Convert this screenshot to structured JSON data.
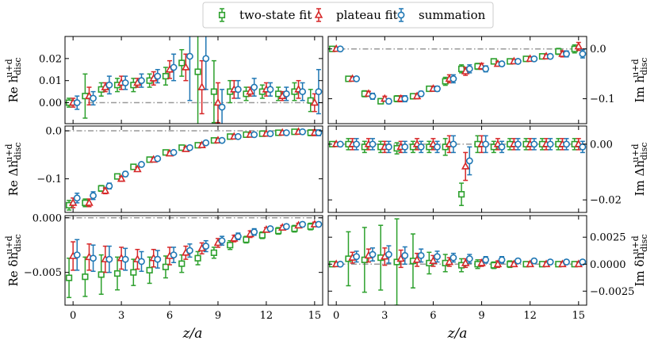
{
  "legend": {
    "entries": [
      {
        "label": "two-state fit",
        "marker": "square",
        "color": "#2ca02c"
      },
      {
        "label": "plateau fit",
        "marker": "triangle",
        "color": "#d62728"
      },
      {
        "label": "summation",
        "marker": "circle",
        "color": "#1f77b4"
      }
    ]
  },
  "xlabel": "z/a",
  "xticks": [
    0,
    3,
    6,
    9,
    12,
    15
  ],
  "xlim": [
    -0.5,
    15.5
  ],
  "refline_color": "#999999",
  "chart_data": [
    {
      "type": "scatter",
      "panel": "Re-h",
      "ylabel": "Re h_disc^{u+d}",
      "ylabel_main": "Re h",
      "ylabel_sub": "disc",
      "ylabel_sup": "u+d",
      "ylim": [
        -0.0095,
        0.03
      ],
      "yticks": [
        0.0,
        0.01,
        0.02
      ],
      "ytick_labels": [
        "0.00",
        "0.01",
        "0.02"
      ],
      "x": [
        0,
        1,
        2,
        3,
        4,
        5,
        6,
        7,
        8,
        9,
        10,
        11,
        12,
        13,
        14,
        15
      ],
      "series": [
        {
          "name": "two-state fit",
          "values": [
            0.0,
            0.003,
            0.006,
            0.008,
            0.008,
            0.01,
            0.012,
            0.018,
            0.014,
            0.005,
            0.005,
            0.004,
            0.005,
            0.004,
            0.005,
            0.001
          ],
          "errors": [
            0.002,
            0.01,
            0.003,
            0.003,
            0.003,
            0.003,
            0.004,
            0.006,
            0.025,
            0.014,
            0.005,
            0.003,
            0.003,
            0.003,
            0.004,
            0.005
          ]
        },
        {
          "name": "plateau fit",
          "values": [
            0.0,
            0.003,
            0.007,
            0.009,
            0.009,
            0.011,
            0.015,
            0.016,
            0.007,
            0.0,
            0.006,
            0.005,
            0.006,
            0.003,
            0.006,
            0.0
          ],
          "errors": [
            0.002,
            0.004,
            0.002,
            0.003,
            0.002,
            0.003,
            0.004,
            0.006,
            0.012,
            0.009,
            0.004,
            0.002,
            0.003,
            0.002,
            0.004,
            0.004
          ]
        },
        {
          "name": "summation",
          "values": [
            0.0,
            0.002,
            0.008,
            0.009,
            0.01,
            0.012,
            0.016,
            0.021,
            0.02,
            -0.002,
            0.006,
            0.007,
            0.006,
            0.004,
            0.005,
            0.005
          ],
          "errors": [
            0.003,
            0.003,
            0.004,
            0.003,
            0.003,
            0.003,
            0.006,
            0.02,
            0.014,
            0.008,
            0.004,
            0.004,
            0.003,
            0.003,
            0.004,
            0.01
          ]
        }
      ],
      "reference_line": 0.0
    },
    {
      "type": "scatter",
      "panel": "Im-h",
      "ylabel": "Im h_disc^{u+d}",
      "ylabel_main": "Im h",
      "ylabel_sub": "disc",
      "ylabel_sup": "u+d",
      "ylim": [
        -0.15,
        0.025
      ],
      "yticks": [
        -0.1,
        0.0
      ],
      "ytick_labels": [
        "−0.1",
        "0.0"
      ],
      "x": [
        0,
        1,
        2,
        3,
        4,
        5,
        6,
        7,
        8,
        9,
        10,
        11,
        12,
        13,
        14,
        15
      ],
      "series": [
        {
          "name": "two-state fit",
          "values": [
            0.0,
            -0.06,
            -0.09,
            -0.105,
            -0.1,
            -0.095,
            -0.08,
            -0.065,
            -0.04,
            -0.035,
            -0.025,
            -0.025,
            -0.02,
            -0.015,
            -0.005,
            0.0
          ],
          "errors": [
            0.002,
            0.004,
            0.006,
            0.005,
            0.006,
            0.005,
            0.005,
            0.008,
            0.008,
            0.006,
            0.004,
            0.004,
            0.004,
            0.004,
            0.006,
            0.008
          ]
        },
        {
          "name": "plateau fit",
          "values": [
            0.0,
            -0.06,
            -0.09,
            -0.1,
            -0.1,
            -0.095,
            -0.08,
            -0.06,
            -0.045,
            -0.035,
            -0.03,
            -0.025,
            -0.02,
            -0.015,
            -0.01,
            0.005
          ],
          "errors": [
            0.002,
            0.004,
            0.005,
            0.005,
            0.006,
            0.005,
            0.005,
            0.008,
            0.008,
            0.006,
            0.004,
            0.004,
            0.004,
            0.004,
            0.006,
            0.008
          ]
        },
        {
          "name": "summation",
          "values": [
            0.0,
            -0.06,
            -0.095,
            -0.105,
            -0.1,
            -0.09,
            -0.08,
            -0.06,
            -0.04,
            -0.04,
            -0.03,
            -0.025,
            -0.02,
            -0.015,
            -0.01,
            -0.01
          ],
          "errors": [
            0.002,
            0.004,
            0.006,
            0.005,
            0.006,
            0.005,
            0.005,
            0.008,
            0.008,
            0.006,
            0.004,
            0.004,
            0.004,
            0.004,
            0.006,
            0.008
          ]
        }
      ],
      "reference_line": 0.0
    },
    {
      "type": "scatter",
      "panel": "Re-Delta-h",
      "ylabel": "Re Δh_disc^{u+d}",
      "ylabel_main": "Re Δh",
      "ylabel_sub": "disc",
      "ylabel_sup": "u+d",
      "ylim": [
        -0.17,
        0.01
      ],
      "yticks": [
        -0.1,
        0.0
      ],
      "ytick_labels": [
        "−0.1",
        "0.0"
      ],
      "x": [
        0,
        1,
        2,
        3,
        4,
        5,
        6,
        7,
        8,
        9,
        10,
        11,
        12,
        13,
        14,
        15
      ],
      "series": [
        {
          "name": "two-state fit",
          "values": [
            -0.155,
            -0.15,
            -0.12,
            -0.095,
            -0.075,
            -0.06,
            -0.045,
            -0.035,
            -0.03,
            -0.02,
            -0.012,
            -0.008,
            -0.006,
            -0.004,
            -0.002,
            -0.004
          ],
          "errors": [
            0.01,
            0.008,
            0.006,
            0.005,
            0.004,
            0.003,
            0.003,
            0.003,
            0.004,
            0.003,
            0.003,
            0.003,
            0.002,
            0.002,
            0.002,
            0.006
          ]
        },
        {
          "name": "plateau fit",
          "values": [
            -0.15,
            -0.15,
            -0.125,
            -0.1,
            -0.08,
            -0.06,
            -0.047,
            -0.038,
            -0.03,
            -0.02,
            -0.012,
            -0.008,
            -0.006,
            -0.004,
            -0.002,
            -0.004
          ],
          "errors": [
            0.01,
            0.008,
            0.006,
            0.005,
            0.004,
            0.003,
            0.003,
            0.003,
            0.004,
            0.003,
            0.003,
            0.003,
            0.002,
            0.002,
            0.002,
            0.006
          ]
        },
        {
          "name": "summation",
          "values": [
            -0.14,
            -0.135,
            -0.115,
            -0.09,
            -0.07,
            -0.058,
            -0.045,
            -0.035,
            -0.025,
            -0.02,
            -0.012,
            -0.008,
            -0.006,
            -0.004,
            -0.002,
            -0.004
          ],
          "errors": [
            0.01,
            0.008,
            0.006,
            0.005,
            0.004,
            0.003,
            0.003,
            0.003,
            0.004,
            0.003,
            0.003,
            0.003,
            0.002,
            0.002,
            0.002,
            0.006
          ]
        }
      ],
      "reference_line": 0.0
    },
    {
      "type": "scatter",
      "panel": "Im-Delta-h",
      "ylabel": "Im Δh_disc^{u+d}",
      "ylabel_main": "Im Δh",
      "ylabel_sub": "disc",
      "ylabel_sup": "u+d",
      "ylim": [
        -0.0245,
        0.0065
      ],
      "yticks": [
        -0.02,
        0.0
      ],
      "ytick_labels": [
        "−0.02",
        "0.00"
      ],
      "x": [
        0,
        1,
        2,
        3,
        4,
        5,
        6,
        7,
        8,
        9,
        10,
        11,
        12,
        13,
        14,
        15
      ],
      "series": [
        {
          "name": "two-state fit",
          "values": [
            0.0,
            0.0,
            -0.001,
            -0.001,
            -0.0015,
            -0.001,
            -0.001,
            -0.001,
            -0.018,
            0.0,
            -0.001,
            0.0,
            0.0,
            0.0,
            0.0,
            0.0
          ],
          "errors": [
            0.0005,
            0.002,
            0.002,
            0.002,
            0.002,
            0.002,
            0.002,
            0.003,
            0.004,
            0.003,
            0.002,
            0.002,
            0.002,
            0.002,
            0.002,
            0.002
          ]
        },
        {
          "name": "plateau fit",
          "values": [
            0.0,
            0.0,
            0.0,
            -0.001,
            -0.001,
            0.0,
            0.0,
            0.0,
            -0.008,
            0.0,
            0.0,
            0.0,
            0.0,
            0.0,
            0.0,
            0.0
          ],
          "errors": [
            0.0005,
            0.002,
            0.002,
            0.002,
            0.002,
            0.002,
            0.002,
            0.003,
            0.005,
            0.003,
            0.002,
            0.002,
            0.002,
            0.002,
            0.002,
            0.002
          ]
        },
        {
          "name": "summation",
          "values": [
            0.0,
            0.0,
            0.0,
            -0.001,
            -0.001,
            -0.001,
            -0.001,
            0.0,
            -0.006,
            0.0,
            -0.001,
            0.0,
            0.0,
            0.0,
            0.0,
            -0.001
          ],
          "errors": [
            0.0005,
            0.002,
            0.002,
            0.002,
            0.002,
            0.002,
            0.002,
            0.003,
            0.005,
            0.003,
            0.002,
            0.002,
            0.002,
            0.002,
            0.002,
            0.002
          ]
        }
      ],
      "reference_line": 0.0
    },
    {
      "type": "scatter",
      "panel": "Re-delta-h",
      "ylabel": "Re δh_disc^{u+d}",
      "ylabel_main": "Re δh",
      "ylabel_sub": "disc",
      "ylabel_sup": "u+d",
      "ylim": [
        -0.008,
        0.0002
      ],
      "yticks": [
        -0.005,
        0.0
      ],
      "ytick_labels": [
        "−0.005",
        "0.000"
      ],
      "x": [
        0,
        1,
        2,
        3,
        4,
        5,
        6,
        7,
        8,
        9,
        10,
        11,
        12,
        13,
        14,
        15
      ],
      "series": [
        {
          "name": "two-state fit",
          "values": [
            -0.0055,
            -0.0054,
            -0.0052,
            -0.0051,
            -0.005,
            -0.0048,
            -0.0045,
            -0.0042,
            -0.0037,
            -0.0032,
            -0.0025,
            -0.002,
            -0.0016,
            -0.0012,
            -0.001,
            -0.0008
          ],
          "errors": [
            0.0018,
            0.0018,
            0.0018,
            0.0015,
            0.0012,
            0.0012,
            0.001,
            0.0008,
            0.0006,
            0.0005,
            0.0004,
            0.0003,
            0.0003,
            0.0003,
            0.0003,
            0.0003
          ]
        },
        {
          "name": "plateau fit",
          "values": [
            -0.0035,
            -0.0036,
            -0.0038,
            -0.0037,
            -0.0038,
            -0.0037,
            -0.0035,
            -0.0032,
            -0.0028,
            -0.0023,
            -0.0019,
            -0.0015,
            -0.0011,
            -0.0009,
            -0.0007,
            -0.0006
          ],
          "errors": [
            0.0013,
            0.0012,
            0.0012,
            0.001,
            0.0009,
            0.0008,
            0.0008,
            0.0006,
            0.0005,
            0.0004,
            0.0003,
            0.0003,
            0.0002,
            0.0002,
            0.0002,
            0.0002
          ]
        },
        {
          "name": "summation",
          "values": [
            -0.0034,
            -0.0037,
            -0.0038,
            -0.0038,
            -0.004,
            -0.0038,
            -0.0034,
            -0.003,
            -0.0026,
            -0.0021,
            -0.0017,
            -0.0013,
            -0.001,
            -0.0008,
            -0.0006,
            -0.0006
          ],
          "errors": [
            0.0014,
            0.0012,
            0.0012,
            0.001,
            0.0009,
            0.0008,
            0.0007,
            0.0006,
            0.0005,
            0.0004,
            0.0003,
            0.0003,
            0.0002,
            0.0002,
            0.0002,
            0.0002
          ]
        }
      ],
      "reference_line": 0.0
    },
    {
      "type": "scatter",
      "panel": "Im-delta-h",
      "ylabel": "Im δh_disc^{u+d}",
      "ylabel_main": "Im δh",
      "ylabel_sub": "disc",
      "ylabel_sup": "u+d",
      "ylim": [
        -0.0038,
        0.0045
      ],
      "yticks": [
        -0.0025,
        0.0,
        0.0025
      ],
      "ytick_labels": [
        "−0.0025",
        "0.0000",
        "0.0025"
      ],
      "x": [
        0,
        1,
        2,
        3,
        4,
        5,
        6,
        7,
        8,
        9,
        10,
        11,
        12,
        13,
        14,
        15
      ],
      "series": [
        {
          "name": "two-state fit",
          "values": [
            0.0,
            0.0005,
            0.0004,
            0.0006,
            0.0002,
            0.0003,
            0.0001,
            0.0001,
            -0.0001,
            0.0,
            -0.0001,
            0.0,
            0.0,
            0.0,
            0.0,
            0.0
          ],
          "errors": [
            0.0001,
            0.0025,
            0.003,
            0.003,
            0.004,
            0.0025,
            0.001,
            0.0008,
            0.0006,
            0.0004,
            0.0003,
            0.0003,
            0.0002,
            0.0002,
            0.0002,
            0.0002
          ]
        },
        {
          "name": "plateau fit",
          "values": [
            0.0,
            0.0006,
            0.0008,
            0.0007,
            0.0005,
            0.0004,
            0.0003,
            0.0002,
            0.0001,
            0.0001,
            0.0,
            0.0,
            0.0,
            0.0,
            0.0,
            0.0
          ],
          "errors": [
            0.0001,
            0.0005,
            0.0006,
            0.0008,
            0.0008,
            0.0006,
            0.0005,
            0.0004,
            0.0004,
            0.0003,
            0.0003,
            0.0002,
            0.0002,
            0.0002,
            0.0002,
            0.0002
          ]
        },
        {
          "name": "summation",
          "values": [
            0.0,
            0.0007,
            0.0009,
            0.0009,
            0.0008,
            0.0008,
            0.0007,
            0.0006,
            0.0005,
            0.0004,
            0.0004,
            0.0003,
            0.0003,
            0.0002,
            0.0002,
            0.0002
          ],
          "errors": [
            0.0001,
            0.0005,
            0.0006,
            0.0008,
            0.0008,
            0.0006,
            0.0005,
            0.0004,
            0.0004,
            0.0003,
            0.0003,
            0.0002,
            0.0002,
            0.0002,
            0.0002,
            0.0002
          ]
        }
      ],
      "reference_line": 0.0
    }
  ]
}
